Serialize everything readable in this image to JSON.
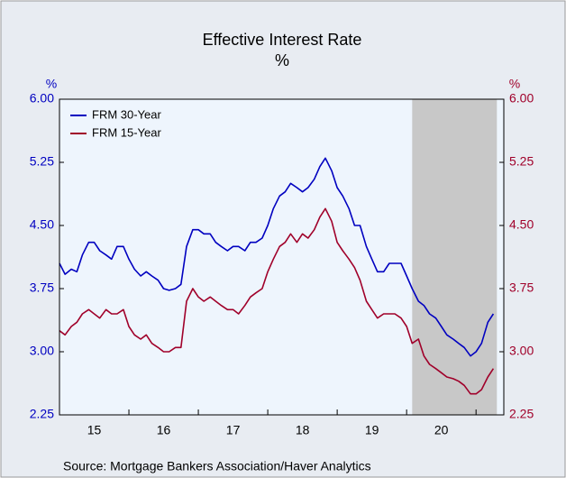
{
  "chart_data": {
    "type": "line",
    "title": "Effective Interest Rate",
    "subtitle": "%",
    "ylabel": "%",
    "y2label": "%",
    "source": "Source:  Mortgage Bankers Association/Haver Analytics",
    "x": [
      15.0,
      15.08,
      15.17,
      15.25,
      15.33,
      15.42,
      15.5,
      15.58,
      15.67,
      15.75,
      15.83,
      15.92,
      16.0,
      16.08,
      16.17,
      16.25,
      16.33,
      16.42,
      16.5,
      16.58,
      16.67,
      16.75,
      16.83,
      16.92,
      17.0,
      17.08,
      17.17,
      17.25,
      17.33,
      17.42,
      17.5,
      17.58,
      17.67,
      17.75,
      17.83,
      17.92,
      18.0,
      18.08,
      18.17,
      18.25,
      18.33,
      18.42,
      18.5,
      18.58,
      18.67,
      18.75,
      18.83,
      18.92,
      19.0,
      19.08,
      19.17,
      19.25,
      19.33,
      19.42,
      19.5,
      19.58,
      19.67,
      19.75,
      19.83,
      19.92,
      20.0,
      20.08,
      20.17,
      20.25,
      20.33,
      20.42,
      20.5,
      20.58,
      20.67,
      20.75,
      20.83,
      20.92,
      21.0,
      21.08,
      21.17,
      21.25
    ],
    "series": [
      {
        "name": "FRM 30-Year",
        "color": "#0000c0",
        "values": [
          4.05,
          3.92,
          3.98,
          3.95,
          4.15,
          4.3,
          4.3,
          4.2,
          4.15,
          4.1,
          4.25,
          4.25,
          4.1,
          3.98,
          3.9,
          3.95,
          3.9,
          3.85,
          3.75,
          3.73,
          3.75,
          3.8,
          4.25,
          4.45,
          4.45,
          4.4,
          4.4,
          4.3,
          4.25,
          4.2,
          4.25,
          4.25,
          4.2,
          4.3,
          4.3,
          4.35,
          4.5,
          4.7,
          4.85,
          4.9,
          5.0,
          4.95,
          4.9,
          4.95,
          5.05,
          5.2,
          5.3,
          5.15,
          4.95,
          4.85,
          4.7,
          4.5,
          4.5,
          4.25,
          4.1,
          3.95,
          3.95,
          4.05,
          4.05,
          4.05,
          3.9,
          3.75,
          3.6,
          3.55,
          3.45,
          3.4,
          3.3,
          3.2,
          3.15,
          3.1,
          3.05,
          2.95,
          3.0,
          3.1,
          3.35,
          3.45
        ]
      },
      {
        "name": "FRM 15-Year",
        "color": "#a0002a",
        "axis": "y2",
        "values": [
          3.25,
          3.2,
          3.3,
          3.35,
          3.45,
          3.5,
          3.45,
          3.4,
          3.5,
          3.45,
          3.45,
          3.5,
          3.3,
          3.2,
          3.15,
          3.2,
          3.1,
          3.05,
          3.0,
          3.0,
          3.05,
          3.05,
          3.6,
          3.75,
          3.65,
          3.6,
          3.65,
          3.6,
          3.55,
          3.5,
          3.5,
          3.45,
          3.55,
          3.65,
          3.7,
          3.75,
          3.95,
          4.1,
          4.25,
          4.3,
          4.4,
          4.3,
          4.4,
          4.35,
          4.45,
          4.6,
          4.7,
          4.55,
          4.3,
          4.2,
          4.1,
          4.0,
          3.85,
          3.6,
          3.5,
          3.4,
          3.45,
          3.45,
          3.45,
          3.4,
          3.3,
          3.1,
          3.15,
          2.95,
          2.85,
          2.8,
          2.75,
          2.7,
          2.68,
          2.65,
          2.6,
          2.5,
          2.5,
          2.55,
          2.7,
          2.8
        ]
      }
    ],
    "xlim": [
      15,
      21.4
    ],
    "xticks": [
      {
        "value": 15.5,
        "label": "15"
      },
      {
        "value": 16.5,
        "label": "16"
      },
      {
        "value": 17.5,
        "label": "17"
      },
      {
        "value": 18.5,
        "label": "18"
      },
      {
        "value": 19.5,
        "label": "19"
      },
      {
        "value": 20.5,
        "label": "20"
      }
    ],
    "ylim": [
      2.25,
      6.0
    ],
    "yticks": [
      {
        "value": 2.25,
        "label": "2.25"
      },
      {
        "value": 3.0,
        "label": "3.00"
      },
      {
        "value": 3.75,
        "label": "3.75"
      },
      {
        "value": 4.5,
        "label": "4.50"
      },
      {
        "value": 5.25,
        "label": "5.25"
      },
      {
        "value": 6.0,
        "label": "6.00"
      }
    ],
    "y2lim": [
      2.25,
      6.0
    ],
    "y2ticks": [
      {
        "value": 2.25,
        "label": "2.25"
      },
      {
        "value": 3.0,
        "label": "3.00"
      },
      {
        "value": 3.75,
        "label": "3.75"
      },
      {
        "value": 4.5,
        "label": "4.50"
      },
      {
        "value": 5.25,
        "label": "5.25"
      },
      {
        "value": 6.0,
        "label": "6.00"
      }
    ],
    "shade": [
      20.08,
      21.3
    ],
    "shade_color": "#c8c8c8",
    "legend": "upper left"
  }
}
